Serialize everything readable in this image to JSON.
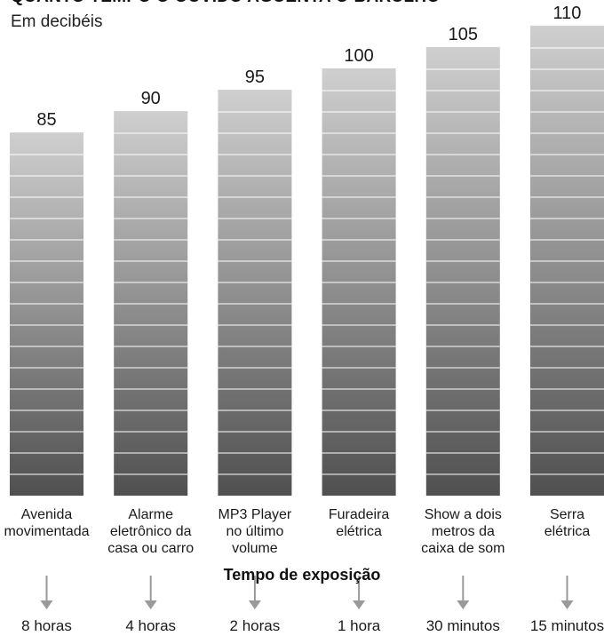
{
  "header": {
    "title": "QUANTO TEMPO O OUVIDO AGUENTA O BARULHO",
    "subtitle": "Em decibéis"
  },
  "chart_data": {
    "type": "bar",
    "title": "QUANTO TEMPO O OUVIDO AGUENTA O BARULHO",
    "subtitle": "Em decibéis",
    "ylabel": "",
    "xlabel": "Tempo de exposição",
    "categories": [
      [
        "Avenida",
        "movimentada"
      ],
      [
        "Alarme",
        "eletrônico da",
        "casa ou carro"
      ],
      [
        "MP3 Player",
        "no último",
        "volume"
      ],
      [
        "Furadeira",
        "elétrica"
      ],
      [
        "Show a dois",
        "metros da",
        "caixa de som"
      ],
      [
        "Serra",
        "elétrica"
      ]
    ],
    "values": [
      85,
      90,
      95,
      100,
      105,
      110
    ],
    "value_labels": [
      "85",
      "90",
      "95",
      "100",
      "105",
      "110"
    ],
    "exposure_times": [
      "8 horas",
      "4 horas",
      "2 horas",
      "1 hora",
      "30 minutos",
      "15 minutos"
    ],
    "colors": {
      "bar_top": "#cfcfcf",
      "bar_bottom": "#505050",
      "stripe": "#ffffff",
      "arrow": "#9a9a9a"
    }
  }
}
